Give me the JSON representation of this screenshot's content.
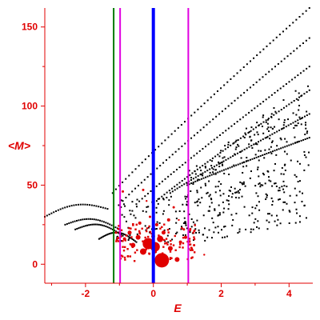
{
  "chart_data": {
    "type": "scatter",
    "title": "",
    "xlabel": "E",
    "ylabel": "<M>",
    "xlim": [
      -3.2,
      4.7
    ],
    "ylim": [
      -12,
      162
    ],
    "xticks": [
      -2,
      0,
      2,
      4
    ],
    "yticks": [
      0,
      50,
      100,
      150
    ],
    "grid": false,
    "colors": {
      "axis": "#e00000",
      "levels": "#000000",
      "strength": "#e00000",
      "line_green": "#007a00",
      "line_magenta": "#e000e0",
      "line_blue": "#0000ff"
    },
    "vertical_lines": [
      {
        "x": -1.17,
        "color": "#007a00",
        "width": 2
      },
      {
        "x": -0.98,
        "color": "#e000e0",
        "width": 2
      },
      {
        "x": 0.0,
        "color": "#0000ff",
        "width": 4
      },
      {
        "x": 1.03,
        "color": "#e000e0",
        "width": 2
      }
    ],
    "level_bands": [
      {
        "from": [
          -1.2,
          45
        ],
        "to": [
          4.6,
          162
        ]
      },
      {
        "from": [
          -0.9,
          40
        ],
        "to": [
          4.6,
          143
        ]
      },
      {
        "from": [
          -0.5,
          38
        ],
        "to": [
          4.6,
          125
        ]
      },
      {
        "from": [
          0.1,
          40
        ],
        "to": [
          4.6,
          110
        ]
      },
      {
        "from": [
          0.5,
          45
        ],
        "to": [
          4.6,
          95
        ]
      },
      {
        "from": [
          1.0,
          50
        ],
        "to": [
          4.6,
          80
        ]
      }
    ],
    "low_branch": [
      {
        "from": [
          -3.2,
          30
        ],
        "to": [
          -1.35,
          35
        ]
      },
      {
        "from": [
          -2.6,
          25
        ],
        "to": [
          -1.0,
          22
        ]
      },
      {
        "from": [
          -2.3,
          22
        ],
        "to": [
          -0.9,
          18
        ]
      },
      {
        "from": [
          -1.6,
          16
        ],
        "to": [
          -0.5,
          14
        ]
      }
    ],
    "strength_points": [
      {
        "x": 0.25,
        "y": 2.5,
        "s": 9
      },
      {
        "x": -0.15,
        "y": 13,
        "s": 7
      },
      {
        "x": 0.05,
        "y": 11,
        "s": 6
      },
      {
        "x": -0.3,
        "y": 8,
        "s": 4
      },
      {
        "x": 0.2,
        "y": 16,
        "s": 4
      },
      {
        "x": -0.45,
        "y": 17,
        "s": 3
      },
      {
        "x": 0.5,
        "y": 10,
        "s": 3
      },
      {
        "x": 0.7,
        "y": 3,
        "s": 3
      },
      {
        "x": -0.6,
        "y": 12,
        "s": 3
      },
      {
        "x": 0.3,
        "y": 20,
        "s": 2.5
      },
      {
        "x": -0.7,
        "y": 20,
        "s": 2.5
      },
      {
        "x": 0.8,
        "y": 14,
        "s": 2
      },
      {
        "x": -0.85,
        "y": 16,
        "s": 2
      },
      {
        "x": 0.95,
        "y": 17,
        "s": 2
      },
      {
        "x": 0.1,
        "y": 25,
        "s": 2
      },
      {
        "x": -0.4,
        "y": 26,
        "s": 2
      },
      {
        "x": 0.45,
        "y": 28,
        "s": 2
      },
      {
        "x": -0.1,
        "y": 30,
        "s": 1.5
      },
      {
        "x": -0.9,
        "y": 46,
        "s": 1.5
      },
      {
        "x": -0.3,
        "y": 47,
        "s": 1.5
      },
      {
        "x": 0.6,
        "y": 36,
        "s": 1.5
      },
      {
        "x": 0.9,
        "y": 22,
        "s": 1.5
      },
      {
        "x": -1.1,
        "y": 20,
        "s": 1.5
      },
      {
        "x": 1.2,
        "y": 12,
        "s": 1.5
      },
      {
        "x": 1.5,
        "y": 6,
        "s": 1.2
      },
      {
        "x": -0.75,
        "y": 5,
        "s": 1.5
      },
      {
        "x": -0.2,
        "y": 40,
        "s": 1.2
      },
      {
        "x": 0.75,
        "y": 28,
        "s": 1.2
      }
    ]
  }
}
